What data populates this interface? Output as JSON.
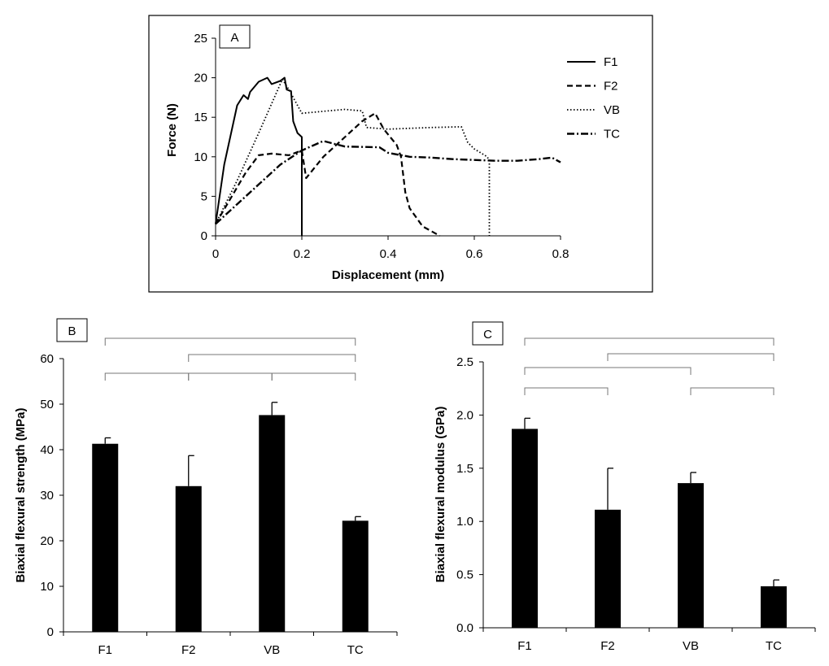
{
  "chart_data": [
    {
      "panel": "A",
      "type": "line",
      "title": "",
      "xlabel": "Displacement (mm)",
      "ylabel": "Force (N)",
      "xlim": [
        0,
        0.8
      ],
      "ylim": [
        0,
        25
      ],
      "xticks": [
        "0",
        "0.2",
        "0.4",
        "0.6",
        "0.8"
      ],
      "yticks": [
        "0",
        "5",
        "10",
        "15",
        "20",
        "25"
      ],
      "legend_position": "top-right",
      "series": [
        {
          "name": "F1",
          "style": "solid",
          "x": [
            0,
            0.02,
            0.05,
            0.065,
            0.075,
            0.08,
            0.1,
            0.12,
            0.13,
            0.15,
            0.16,
            0.165,
            0.175,
            0.18,
            0.19,
            0.2,
            0.2
          ],
          "y": [
            1.5,
            9,
            16.5,
            17.8,
            17.3,
            18.2,
            19.5,
            20,
            19.2,
            19.6,
            20,
            18.5,
            18.3,
            14.5,
            13,
            12.5,
            0
          ]
        },
        {
          "name": "F2",
          "style": "dashed",
          "x": [
            0,
            0.07,
            0.1,
            0.13,
            0.17,
            0.2,
            0.21,
            0.25,
            0.3,
            0.34,
            0.37,
            0.39,
            0.42,
            0.43,
            0.44,
            0.45,
            0.48,
            0.52
          ],
          "y": [
            1.5,
            8,
            10.2,
            10.4,
            10.2,
            10.8,
            7.3,
            10,
            12.5,
            14.5,
            15.5,
            13.5,
            11.5,
            10,
            5.5,
            3.5,
            1.2,
            0
          ]
        },
        {
          "name": "VB",
          "style": "dotted",
          "x": [
            0,
            0.05,
            0.1,
            0.155,
            0.17,
            0.2,
            0.26,
            0.3,
            0.34,
            0.35,
            0.4,
            0.5,
            0.57,
            0.585,
            0.6,
            0.63,
            0.635,
            0.635
          ],
          "y": [
            1.5,
            7,
            13,
            19.8,
            18.5,
            15.5,
            15.8,
            16,
            15.8,
            13.7,
            13.5,
            13.7,
            13.8,
            11.8,
            11,
            10,
            9.5,
            0
          ]
        },
        {
          "name": "TC",
          "style": "dashdot",
          "x": [
            0,
            0.05,
            0.1,
            0.15,
            0.2,
            0.25,
            0.3,
            0.38,
            0.4,
            0.45,
            0.5,
            0.55,
            0.6,
            0.65,
            0.7,
            0.75,
            0.78,
            0.8
          ],
          "y": [
            1.5,
            4,
            6.5,
            9,
            10.8,
            12,
            11.3,
            11.2,
            10.5,
            10,
            9.9,
            9.7,
            9.6,
            9.5,
            9.5,
            9.7,
            9.9,
            9.3
          ]
        }
      ]
    },
    {
      "panel": "B",
      "type": "bar",
      "title": "",
      "xlabel": "",
      "ylabel": "Biaxial flexural strength (MPa)",
      "categories": [
        "F1",
        "F2",
        "VB",
        "TC"
      ],
      "values": [
        41.3,
        32,
        47.6,
        24.4
      ],
      "errors": [
        1.3,
        6.7,
        2.8,
        0.9
      ],
      "ylim": [
        0,
        60
      ],
      "yticks": [
        "0",
        "10",
        "20",
        "30",
        "40",
        "50",
        "60"
      ],
      "significance_brackets": [
        [
          0,
          3
        ],
        [
          1,
          3
        ],
        [
          0,
          1
        ],
        [
          1,
          2
        ],
        [
          2,
          3
        ]
      ]
    },
    {
      "panel": "C",
      "type": "bar",
      "title": "",
      "xlabel": "",
      "ylabel": "Biaxial flexural modulus (GPa)",
      "categories": [
        "F1",
        "F2",
        "VB",
        "TC"
      ],
      "values": [
        1.87,
        1.11,
        1.36,
        0.39
      ],
      "errors": [
        0.1,
        0.39,
        0.1,
        0.06
      ],
      "ylim": [
        0,
        2.5
      ],
      "yticks": [
        "0.0",
        "0.5",
        "1.0",
        "1.5",
        "2.0",
        "2.5"
      ],
      "significance_brackets": [
        [
          0,
          3
        ],
        [
          1,
          3
        ],
        [
          0,
          2
        ],
        [
          0,
          1
        ],
        [
          2,
          3
        ]
      ]
    }
  ]
}
